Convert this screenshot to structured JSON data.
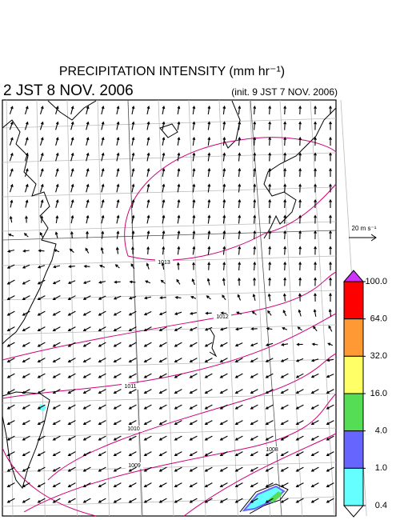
{
  "header": {
    "title": "PRECIPITATION INTENSITY (mm hr⁻¹)",
    "valid_time": "2 JST 8 NOV. 2006",
    "init_time": "(init. 9 JST 7 NOV. 2006)"
  },
  "vector_legend": {
    "label": "20 m s⁻¹"
  },
  "colorbar": {
    "ticks": [
      {
        "value": 100,
        "label": "100.0"
      },
      {
        "value": 64,
        "label": "64.0"
      },
      {
        "value": 32,
        "label": "32.0"
      },
      {
        "value": 16,
        "label": "16.0"
      },
      {
        "value": 4,
        "label": "4.0"
      },
      {
        "value": 1,
        "label": "1.0"
      },
      {
        "value": 0.4,
        "label": "0.4"
      }
    ],
    "colors": [
      "#ff0000",
      "#ff9933",
      "#ffff66",
      "#55dd55",
      "#6666ff",
      "#66ffff"
    ],
    "over_color": "#cc33ff",
    "under_color": "#ffffff"
  },
  "isobar_labels": [
    1013,
    1012,
    1011,
    1010,
    1009,
    1008
  ]
}
